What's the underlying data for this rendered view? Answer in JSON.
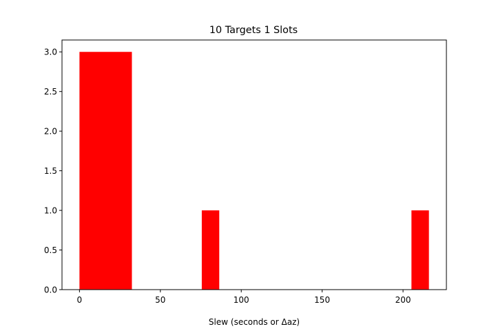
{
  "chart_data": {
    "type": "bar",
    "title": "10 Targets 1 Slots",
    "xlabel": "Slew (seconds or Δaz)",
    "ylabel": "",
    "xlim": [
      -10.8,
      226.8
    ],
    "ylim": [
      0,
      3.15
    ],
    "xticks": [
      0,
      50,
      100,
      150,
      200
    ],
    "xtick_labels": [
      "0",
      "50",
      "100",
      "150",
      "200"
    ],
    "yticks": [
      0,
      0.5,
      1.0,
      1.5,
      2.0,
      2.5,
      3.0
    ],
    "ytick_labels": [
      "0.0",
      "0.5",
      "1.0",
      "1.5",
      "2.0",
      "2.5",
      "3.0"
    ],
    "bars": [
      {
        "x0": 0,
        "x1": 32.4,
        "value": 3
      },
      {
        "x0": 75.6,
        "x1": 86.4,
        "value": 1
      },
      {
        "x0": 205.2,
        "x1": 216,
        "value": 1
      }
    ],
    "bar_color": "#ff0000",
    "grid": false,
    "legend": false
  }
}
